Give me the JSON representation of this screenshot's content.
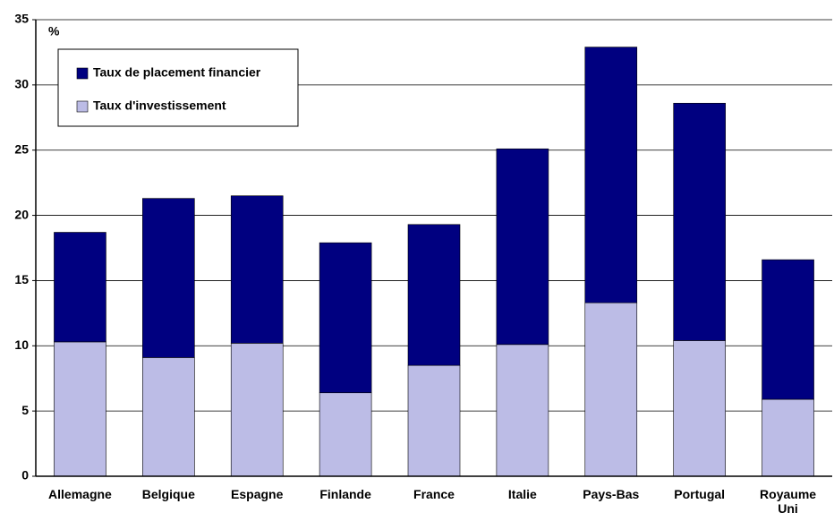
{
  "chart_data": {
    "type": "stacked_bar",
    "y_label": "%",
    "categories": [
      "Allemagne",
      "Belgique",
      "Espagne",
      "Finlande",
      "France",
      "Italie",
      "Pays-Bas",
      "Portugal",
      "Royaume Uni"
    ],
    "series": [
      {
        "name": "Taux de placement financier",
        "color": "#000080",
        "values": [
          8.4,
          12.2,
          11.3,
          11.5,
          10.8,
          15.0,
          19.6,
          18.2,
          10.7
        ]
      },
      {
        "name": "Taux d'investissement",
        "color": "#bcbce6",
        "values": [
          10.3,
          9.1,
          10.2,
          6.4,
          8.5,
          10.1,
          13.3,
          10.4,
          5.9
        ]
      }
    ],
    "ylim": [
      0,
      35
    ],
    "yticks": [
      0,
      5,
      10,
      15,
      20,
      25,
      30,
      35
    ],
    "grid": true
  }
}
